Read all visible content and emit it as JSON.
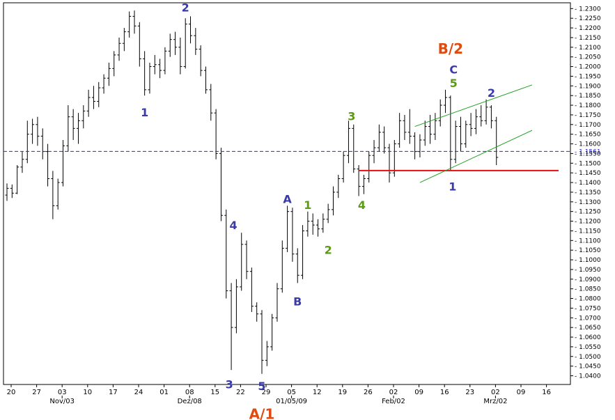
{
  "chart_data": {
    "type": "bar",
    "subtype": "ohlc-daily",
    "title": "",
    "xlabel": "",
    "ylabel": "",
    "ylim": [
      1.0355,
      1.233
    ],
    "y_ticks": [
      "1.0400",
      "1.0450",
      "1.0500",
      "1.0550",
      "1.0600",
      "1.0650",
      "1.0700",
      "1.0750",
      "1.0800",
      "1.0850",
      "1.0900",
      "1.0950",
      "1.1000",
      "1.1050",
      "1.1100",
      "1.1150",
      "1.1200",
      "1.1250",
      "1.1300",
      "1.1350",
      "1.1400",
      "1.1450",
      "1.1500",
      "1.1550",
      "1.1600",
      "1.1650",
      "1.1700",
      "1.1750",
      "1.1800",
      "1.1850",
      "1.1900",
      "1.1950",
      "1.2000",
      "1.2050",
      "1.2100",
      "1.2150",
      "1.2200",
      "1.2250",
      "1.2300"
    ],
    "x_day_labels": [
      "20",
      "27",
      "03",
      "10",
      "17",
      "24",
      "01",
      "08",
      "15",
      "22",
      "29",
      "05",
      "12",
      "19",
      "26",
      "02",
      "09",
      "16",
      "23",
      "02",
      "09",
      "16"
    ],
    "x_month_labels": [
      {
        "label": "Nov/03",
        "at": "03"
      },
      {
        "label": "Dez/08",
        "at": "08"
      },
      {
        "label": "01/05/09",
        "at": "05"
      },
      {
        "label": "Feb/02",
        "at": "02"
      },
      {
        "label": "Mrz/02",
        "at": "02"
      }
    ],
    "current_price": {
      "label": "1.1561",
      "value": 1.1561
    },
    "support_level": 1.1462,
    "channel_lines": [
      {
        "from": [
          40,
          1.169
        ],
        "to": [
          63,
          1.1905
        ]
      },
      {
        "from": [
          41,
          1.14
        ],
        "to": [
          63,
          1.167
        ]
      }
    ],
    "wave_labels": [
      {
        "text": "1",
        "color": "#3a3aa8",
        "bar": 13.5,
        "price": 1.1765
      },
      {
        "text": "2",
        "color": "#3a3aa8",
        "bar": 17.5,
        "price": 1.2307
      },
      {
        "text": "3",
        "color": "#3a3aa8",
        "bar": 21.8,
        "price": 1.0357
      },
      {
        "text": "4",
        "color": "#3a3aa8",
        "bar": 22.2,
        "price": 1.118
      },
      {
        "text": "5",
        "color": "#3a3aa8",
        "bar": 25,
        "price": 1.0347
      },
      {
        "text": "A/1",
        "color": "#e04b10",
        "bar": 25,
        "price": 1.0205
      },
      {
        "text": "A",
        "color": "#3a3aa8",
        "bar": 27.5,
        "price": 1.1315
      },
      {
        "text": "B",
        "color": "#3a3aa8",
        "bar": 28.5,
        "price": 1.0785
      },
      {
        "text": "1",
        "color": "#5a9a14",
        "bar": 29.5,
        "price": 1.1285
      },
      {
        "text": "2",
        "color": "#5a9a14",
        "bar": 31.5,
        "price": 1.1053
      },
      {
        "text": "3",
        "color": "#5a9a14",
        "bar": 33.8,
        "price": 1.1745
      },
      {
        "text": "4",
        "color": "#5a9a14",
        "bar": 34.8,
        "price": 1.1285
      },
      {
        "text": "B/2",
        "color": "#e04b10",
        "bar": 43.5,
        "price": 1.2095
      },
      {
        "text": "C",
        "color": "#3a3aa8",
        "bar": 43.8,
        "price": 1.1985
      },
      {
        "text": "5",
        "color": "#5a9a14",
        "bar": 43.8,
        "price": 1.1915
      },
      {
        "text": "1",
        "color": "#3a3aa8",
        "bar": 43.7,
        "price": 1.138
      },
      {
        "text": "2",
        "color": "#3a3aa8",
        "bar": 47.5,
        "price": 1.1865
      }
    ],
    "bars": [
      [
        0,
        1.1335,
        1.1395,
        1.1305,
        1.137
      ],
      [
        0.5,
        1.137,
        1.139,
        1.132,
        1.1345
      ],
      [
        1,
        1.1345,
        1.149,
        1.134,
        1.148
      ],
      [
        1.5,
        1.148,
        1.156,
        1.145,
        1.152
      ],
      [
        2,
        1.152,
        1.172,
        1.15,
        1.165
      ],
      [
        2.5,
        1.165,
        1.173,
        1.16,
        1.17
      ],
      [
        3,
        1.17,
        1.174,
        1.159,
        1.164
      ],
      [
        3.5,
        1.164,
        1.168,
        1.152,
        1.156
      ],
      [
        4,
        1.156,
        1.16,
        1.138,
        1.142
      ],
      [
        4.5,
        1.142,
        1.146,
        1.121,
        1.128
      ],
      [
        5,
        1.128,
        1.142,
        1.126,
        1.14
      ],
      [
        5.5,
        1.14,
        1.162,
        1.138,
        1.159
      ],
      [
        6,
        1.159,
        1.18,
        1.156,
        1.174
      ],
      [
        6.5,
        1.174,
        1.178,
        1.162,
        1.168
      ],
      [
        7,
        1.168,
        1.176,
        1.16,
        1.172
      ],
      [
        7.5,
        1.172,
        1.18,
        1.168,
        1.177
      ],
      [
        8,
        1.177,
        1.188,
        1.174,
        1.184
      ],
      [
        8.5,
        1.184,
        1.19,
        1.178,
        1.182
      ],
      [
        9,
        1.182,
        1.192,
        1.179,
        1.189
      ],
      [
        9.5,
        1.189,
        1.196,
        1.186,
        1.194
      ],
      [
        10,
        1.194,
        1.202,
        1.19,
        1.199
      ],
      [
        10.5,
        1.199,
        1.208,
        1.195,
        1.206
      ],
      [
        11,
        1.206,
        1.215,
        1.203,
        1.212
      ],
      [
        11.5,
        1.212,
        1.22,
        1.208,
        1.218
      ],
      [
        12,
        1.218,
        1.2285,
        1.215,
        1.226
      ],
      [
        12.5,
        1.226,
        1.229,
        1.217,
        1.221
      ],
      [
        13,
        1.221,
        1.223,
        1.2,
        1.204
      ],
      [
        13.5,
        1.204,
        1.208,
        1.185,
        1.188
      ],
      [
        14,
        1.188,
        1.202,
        1.186,
        1.2
      ],
      [
        14.5,
        1.2,
        1.206,
        1.196,
        1.201
      ],
      [
        15,
        1.201,
        1.204,
        1.194,
        1.198
      ],
      [
        15.5,
        1.198,
        1.21,
        1.196,
        1.208
      ],
      [
        16,
        1.208,
        1.217,
        1.205,
        1.214
      ],
      [
        16.5,
        1.214,
        1.218,
        1.206,
        1.21
      ],
      [
        17,
        1.21,
        1.215,
        1.196,
        1.2
      ],
      [
        17.5,
        1.2,
        1.225,
        1.199,
        1.222
      ],
      [
        18,
        1.222,
        1.226,
        1.212,
        1.216
      ],
      [
        18.5,
        1.216,
        1.22,
        1.206,
        1.209
      ],
      [
        19,
        1.209,
        1.211,
        1.195,
        1.198
      ],
      [
        19.5,
        1.198,
        1.2,
        1.186,
        1.188
      ],
      [
        20,
        1.188,
        1.191,
        1.172,
        1.176
      ],
      [
        20.5,
        1.176,
        1.178,
        1.152,
        1.155
      ],
      [
        21,
        1.155,
        1.158,
        1.12,
        1.123
      ],
      [
        21.5,
        1.123,
        1.126,
        1.08,
        1.084
      ],
      [
        22,
        1.084,
        1.088,
        1.043,
        1.065
      ],
      [
        22.5,
        1.065,
        1.09,
        1.062,
        1.086
      ],
      [
        23,
        1.086,
        1.114,
        1.084,
        1.108
      ],
      [
        23.5,
        1.108,
        1.11,
        1.09,
        1.094
      ],
      [
        24,
        1.094,
        1.096,
        1.073,
        1.076
      ],
      [
        24.5,
        1.076,
        1.078,
        1.068,
        1.072
      ],
      [
        25,
        1.072,
        1.074,
        1.041,
        1.048
      ],
      [
        25.5,
        1.048,
        1.058,
        1.045,
        1.055
      ],
      [
        26,
        1.055,
        1.072,
        1.053,
        1.07
      ],
      [
        26.5,
        1.07,
        1.088,
        1.068,
        1.085
      ],
      [
        27,
        1.085,
        1.11,
        1.083,
        1.106
      ],
      [
        27.5,
        1.106,
        1.128,
        1.104,
        1.125
      ],
      [
        28,
        1.125,
        1.127,
        1.099,
        1.103
      ],
      [
        28.5,
        1.103,
        1.106,
        1.088,
        1.092
      ],
      [
        29,
        1.092,
        1.118,
        1.09,
        1.115
      ],
      [
        29.5,
        1.115,
        1.125,
        1.112,
        1.12
      ],
      [
        30,
        1.12,
        1.124,
        1.113,
        1.118
      ],
      [
        30.5,
        1.118,
        1.121,
        1.112,
        1.116
      ],
      [
        31,
        1.116,
        1.124,
        1.114,
        1.121
      ],
      [
        31.5,
        1.121,
        1.129,
        1.119,
        1.126
      ],
      [
        32,
        1.126,
        1.138,
        1.123,
        1.135
      ],
      [
        32.5,
        1.135,
        1.144,
        1.132,
        1.142
      ],
      [
        33,
        1.142,
        1.156,
        1.14,
        1.154
      ],
      [
        33.5,
        1.154,
        1.172,
        1.15,
        1.168
      ],
      [
        34,
        1.168,
        1.17,
        1.145,
        1.147
      ],
      [
        34.5,
        1.147,
        1.149,
        1.133,
        1.138
      ],
      [
        35,
        1.138,
        1.144,
        1.134,
        1.142
      ],
      [
        35.5,
        1.142,
        1.156,
        1.14,
        1.154
      ],
      [
        36,
        1.154,
        1.162,
        1.15,
        1.158
      ],
      [
        36.5,
        1.158,
        1.17,
        1.156,
        1.166
      ],
      [
        37,
        1.166,
        1.169,
        1.155,
        1.158
      ],
      [
        37.5,
        1.158,
        1.16,
        1.14,
        1.145
      ],
      [
        38,
        1.145,
        1.162,
        1.143,
        1.16
      ],
      [
        38.5,
        1.16,
        1.176,
        1.158,
        1.172
      ],
      [
        39,
        1.172,
        1.175,
        1.162,
        1.166
      ],
      [
        39.5,
        1.166,
        1.178,
        1.16,
        1.164
      ],
      [
        40,
        1.164,
        1.166,
        1.152,
        1.156
      ],
      [
        40.5,
        1.156,
        1.165,
        1.153,
        1.162
      ],
      [
        41,
        1.162,
        1.172,
        1.159,
        1.169
      ],
      [
        41.5,
        1.169,
        1.175,
        1.16,
        1.165
      ],
      [
        42,
        1.165,
        1.176,
        1.162,
        1.172
      ],
      [
        42.5,
        1.172,
        1.183,
        1.169,
        1.18
      ],
      [
        43,
        1.18,
        1.188,
        1.176,
        1.184
      ],
      [
        43.5,
        1.184,
        1.185,
        1.146,
        1.152
      ],
      [
        44,
        1.152,
        1.172,
        1.15,
        1.169
      ],
      [
        44.5,
        1.169,
        1.174,
        1.156,
        1.16
      ],
      [
        45,
        1.16,
        1.172,
        1.158,
        1.17
      ],
      [
        45.5,
        1.17,
        1.176,
        1.164,
        1.168
      ],
      [
        46,
        1.168,
        1.178,
        1.165,
        1.174
      ],
      [
        46.5,
        1.174,
        1.18,
        1.169,
        1.172
      ],
      [
        47,
        1.172,
        1.183,
        1.17,
        1.179
      ],
      [
        47.5,
        1.179,
        1.18,
        1.168,
        1.172
      ],
      [
        48,
        1.172,
        1.174,
        1.149,
        1.153
      ]
    ]
  }
}
